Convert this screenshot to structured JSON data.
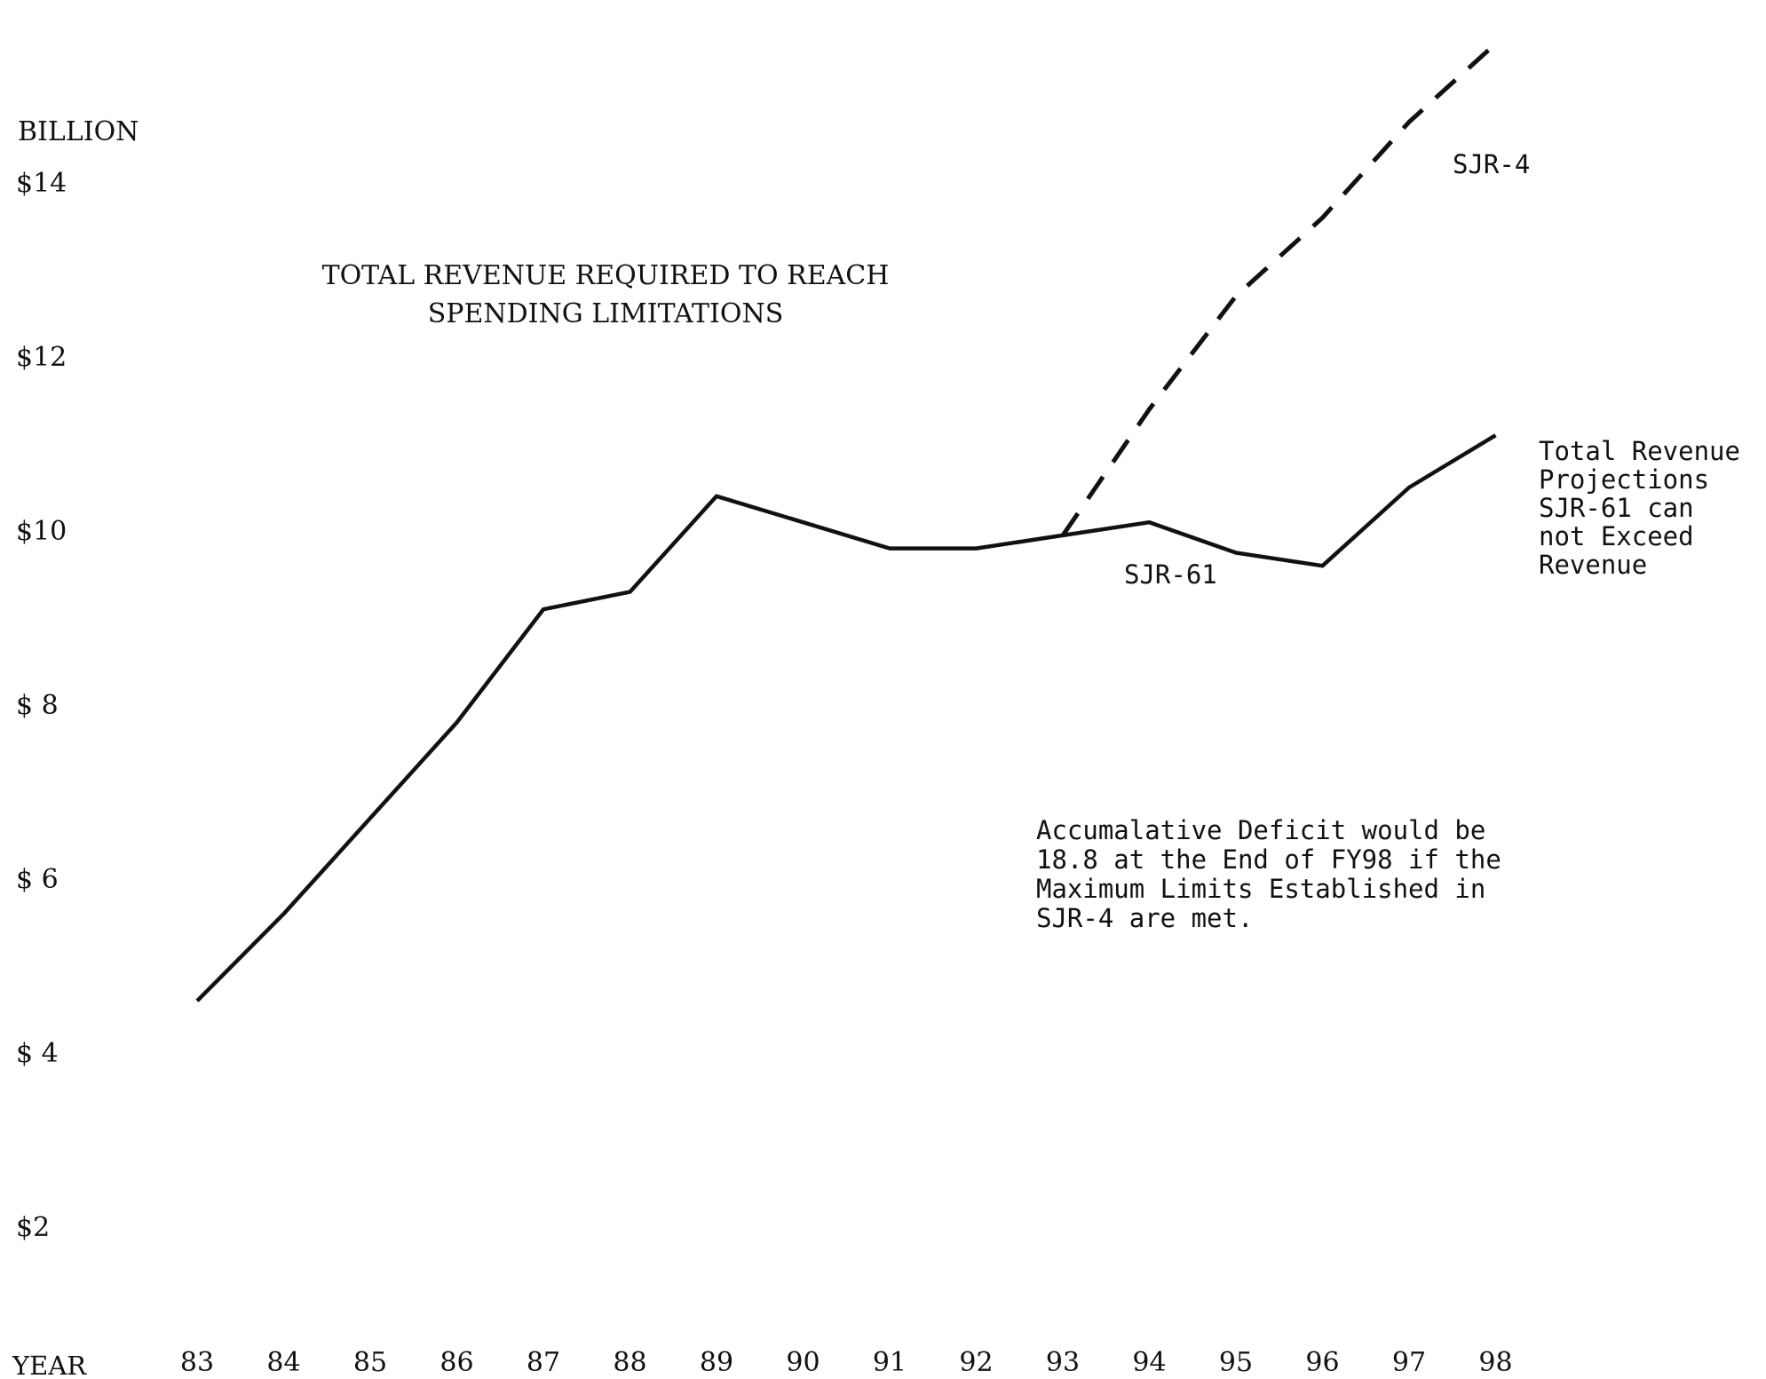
{
  "chart_data": {
    "type": "line",
    "title_lines": [
      "TOTAL REVENUE REQUIRED TO REACH",
      "SPENDING LIMITATIONS"
    ],
    "ylabel": "BILLION",
    "xlabel": "YEAR",
    "y_ticks": [
      {
        "value": 14,
        "label": "$14"
      },
      {
        "value": 12,
        "label": "$12"
      },
      {
        "value": 10,
        "label": "$10"
      },
      {
        "value": 8,
        "label": "$ 8"
      },
      {
        "value": 6,
        "label": "$ 6"
      },
      {
        "value": 4,
        "label": "$ 4"
      },
      {
        "value": 2,
        "label": "$2"
      }
    ],
    "x_ticks": [
      "83",
      "84",
      "85",
      "86",
      "87",
      "88",
      "89",
      "90",
      "91",
      "92",
      "93",
      "94",
      "95",
      "96",
      "97",
      "98"
    ],
    "ylim": [
      1,
      15.5
    ],
    "xlim": [
      83,
      98
    ],
    "grid": false,
    "series": [
      {
        "name": "SJR-61",
        "style": "solid",
        "color": "#111111",
        "points": [
          [
            83,
            4.6
          ],
          [
            84,
            5.6
          ],
          [
            85,
            6.7
          ],
          [
            86,
            7.8
          ],
          [
            87,
            9.1
          ],
          [
            88,
            9.3
          ],
          [
            89,
            10.4
          ],
          [
            90,
            10.1
          ],
          [
            91,
            9.8
          ],
          [
            92,
            9.8
          ],
          [
            93,
            9.95
          ],
          [
            94,
            10.1
          ],
          [
            95,
            9.75
          ],
          [
            96,
            9.6
          ],
          [
            97,
            10.5
          ],
          [
            98,
            11.1
          ]
        ]
      },
      {
        "name": "SJR-4",
        "style": "dashed",
        "color": "#111111",
        "points": [
          [
            93,
            9.95
          ],
          [
            94,
            11.4
          ],
          [
            95,
            12.7
          ],
          [
            96,
            13.6
          ],
          [
            97,
            14.7
          ],
          [
            98,
            15.6
          ]
        ]
      }
    ],
    "annotations": {
      "sjr4_label": "SJR-4",
      "sjr61_label": "SJR-61",
      "revenue_note": [
        "Total Revenue",
        "Projections",
        "SJR-61 can",
        "not Exceed",
        "Revenue"
      ],
      "deficit_note": [
        "Accumalative Deficit would be",
        "18.8 at the End of FY98 if the",
        "Maximum Limits Established in",
        "SJR-4 are met."
      ]
    }
  }
}
